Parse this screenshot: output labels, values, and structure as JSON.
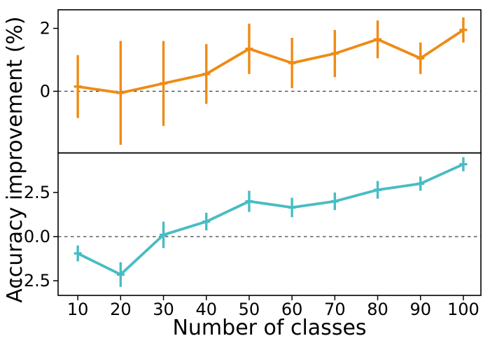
{
  "chart_data": {
    "type": "line",
    "title": "",
    "xlabel": "Number of classes",
    "ylabel": "Accuracy improvement (%)",
    "x": [
      10,
      20,
      30,
      40,
      50,
      60,
      70,
      80,
      90,
      100
    ],
    "xtick_labels": [
      "10",
      "20",
      "30",
      "40",
      "50",
      "60",
      "70",
      "80",
      "90",
      "100"
    ],
    "xlim": [
      5.4,
      104.1
    ],
    "grid": false,
    "legend": "none",
    "marker": "horizontal-tick",
    "dashed_zero_line_color": "#3f3f3f",
    "axis_color": "#000000",
    "panels": [
      {
        "position": "top",
        "series_name": "top-series",
        "series_color": "#EE8B15",
        "ylim": [
          -1.96,
          2.59
        ],
        "yticks": [
          {
            "value": 2,
            "label": "2"
          },
          {
            "value": 0,
            "label": "0"
          }
        ],
        "zero_line_value": 0,
        "values": [
          0.15,
          -0.05,
          0.25,
          0.55,
          1.35,
          0.9,
          1.2,
          1.65,
          1.05,
          1.95
        ],
        "errors": [
          1.0,
          1.65,
          1.35,
          0.95,
          0.8,
          0.8,
          0.75,
          0.6,
          0.5,
          0.4
        ]
      },
      {
        "position": "bottom",
        "series_name": "bottom-series",
        "series_color": "#48BCC4",
        "ylim": [
          -3.33,
          4.74
        ],
        "yticks": [
          {
            "value": 2.5,
            "label": "2.5"
          },
          {
            "value": 0,
            "label": "0.0"
          },
          {
            "value": -2.5,
            "label": "−2.5"
          }
        ],
        "zero_line_value": 0,
        "values": [
          -0.95,
          -2.15,
          0.1,
          0.85,
          2.0,
          1.65,
          2.0,
          2.65,
          3.0,
          4.1
        ],
        "errors": [
          0.45,
          0.7,
          0.75,
          0.5,
          0.6,
          0.55,
          0.5,
          0.5,
          0.4,
          0.4
        ]
      }
    ]
  }
}
